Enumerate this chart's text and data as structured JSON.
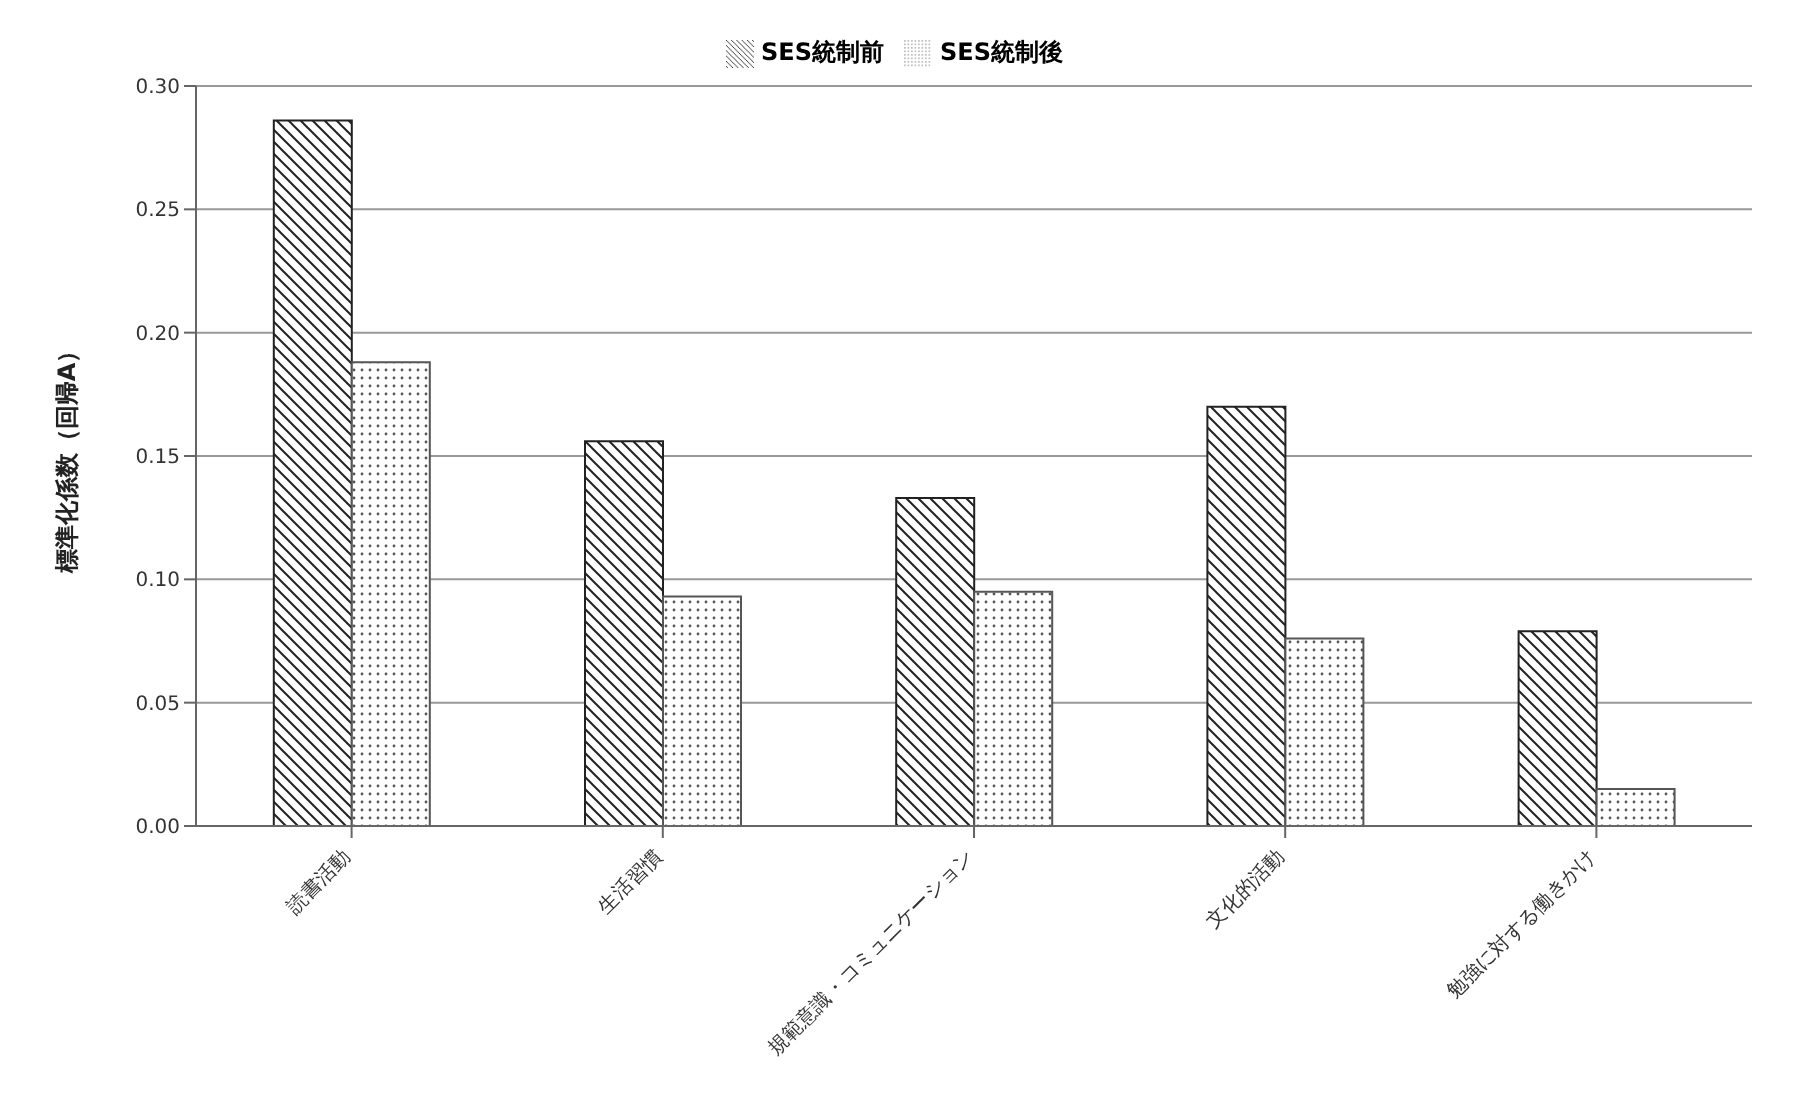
{
  "chart_data": {
    "type": "bar",
    "ylabel": "標準化係数（回帰A）",
    "categories": [
      "読書活動",
      "生活習慣",
      "規範意識・コミュニケーション",
      "文化的活動",
      "勉強に対する働きかけ"
    ],
    "series": [
      {
        "name": "SES統制前",
        "color": "#222222",
        "values": [
          0.286,
          0.156,
          0.133,
          0.17,
          0.079
        ]
      },
      {
        "name": "SES統制後",
        "color": "#555555",
        "values": [
          0.188,
          0.093,
          0.095,
          0.076,
          0.015
        ]
      }
    ],
    "ylim": [
      0,
      0.3
    ],
    "yticks": [
      {
        "value": 0,
        "label": "0.00"
      },
      {
        "value": 0.05,
        "label": "0.05"
      },
      {
        "value": 0.1,
        "label": "0.10"
      },
      {
        "value": 0.15,
        "label": "0.15"
      },
      {
        "value": 0.2,
        "label": "0.20"
      },
      {
        "value": 0.25,
        "label": "0.25"
      },
      {
        "value": 0.3,
        "label": "0.30"
      }
    ],
    "grid": "y",
    "legend": "top"
  }
}
